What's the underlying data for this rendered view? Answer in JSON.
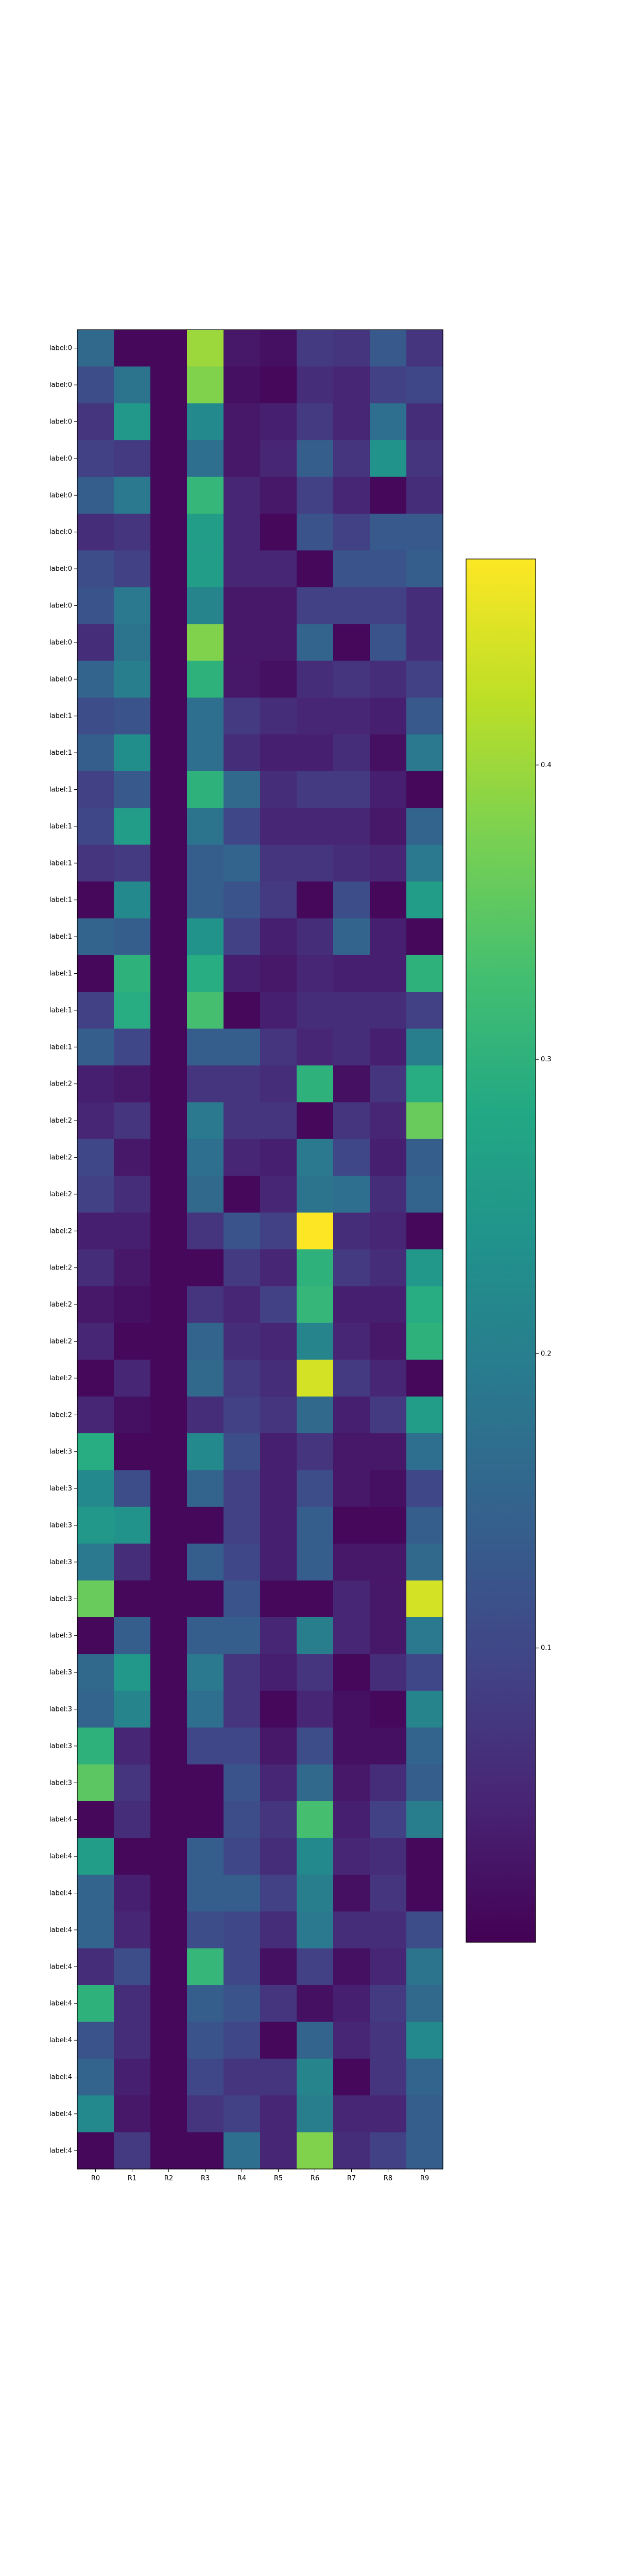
{
  "chart_data": {
    "type": "heatmap",
    "title": "",
    "xlabel": "",
    "ylabel": "",
    "x_labels": [
      "R0",
      "R1",
      "R2",
      "R3",
      "R4",
      "R5",
      "R6",
      "R7",
      "R8",
      "R9"
    ],
    "y_labels": [
      "label:0",
      "label:0",
      "label:0",
      "label:0",
      "label:0",
      "label:0",
      "label:0",
      "label:0",
      "label:0",
      "label:0",
      "label:1",
      "label:1",
      "label:1",
      "label:1",
      "label:1",
      "label:1",
      "label:1",
      "label:1",
      "label:1",
      "label:1",
      "label:2",
      "label:2",
      "label:2",
      "label:2",
      "label:2",
      "label:2",
      "label:2",
      "label:2",
      "label:2",
      "label:2",
      "label:3",
      "label:3",
      "label:3",
      "label:3",
      "label:3",
      "label:3",
      "label:3",
      "label:3",
      "label:3",
      "label:3",
      "label:4",
      "label:4",
      "label:4",
      "label:4",
      "label:4",
      "label:4",
      "label:4",
      "label:4",
      "label:4",
      "label:4"
    ],
    "values": [
      [
        0.16,
        0.01,
        0.01,
        0.4,
        0.03,
        0.02,
        0.08,
        0.07,
        0.13,
        0.07
      ],
      [
        0.11,
        0.18,
        0.01,
        0.38,
        0.02,
        0.01,
        0.06,
        0.05,
        0.09,
        0.1
      ],
      [
        0.07,
        0.25,
        0.01,
        0.22,
        0.03,
        0.04,
        0.08,
        0.05,
        0.17,
        0.06
      ],
      [
        0.09,
        0.08,
        0.01,
        0.17,
        0.03,
        0.05,
        0.14,
        0.07,
        0.24,
        0.07
      ],
      [
        0.14,
        0.19,
        0.01,
        0.31,
        0.05,
        0.03,
        0.09,
        0.05,
        0.01,
        0.06
      ],
      [
        0.06,
        0.07,
        0.01,
        0.26,
        0.05,
        0.01,
        0.12,
        0.09,
        0.13,
        0.13
      ],
      [
        0.11,
        0.09,
        0.01,
        0.26,
        0.05,
        0.05,
        0.01,
        0.12,
        0.12,
        0.14
      ],
      [
        0.12,
        0.19,
        0.01,
        0.21,
        0.03,
        0.03,
        0.09,
        0.09,
        0.09,
        0.06
      ],
      [
        0.06,
        0.18,
        0.01,
        0.38,
        0.03,
        0.03,
        0.15,
        0.01,
        0.12,
        0.06
      ],
      [
        0.15,
        0.2,
        0.01,
        0.3,
        0.03,
        0.02,
        0.06,
        0.07,
        0.06,
        0.09
      ],
      [
        0.11,
        0.12,
        0.01,
        0.17,
        0.08,
        0.06,
        0.05,
        0.05,
        0.04,
        0.13
      ],
      [
        0.14,
        0.23,
        0.01,
        0.17,
        0.06,
        0.04,
        0.04,
        0.06,
        0.02,
        0.19
      ],
      [
        0.09,
        0.13,
        0.01,
        0.3,
        0.16,
        0.06,
        0.08,
        0.08,
        0.04,
        0.01
      ],
      [
        0.1,
        0.26,
        0.01,
        0.18,
        0.1,
        0.05,
        0.05,
        0.05,
        0.03,
        0.15
      ],
      [
        0.07,
        0.08,
        0.01,
        0.14,
        0.15,
        0.07,
        0.07,
        0.06,
        0.05,
        0.19
      ],
      [
        0.01,
        0.22,
        0.01,
        0.14,
        0.12,
        0.08,
        0.01,
        0.11,
        0.01,
        0.26
      ],
      [
        0.15,
        0.14,
        0.01,
        0.24,
        0.09,
        0.04,
        0.06,
        0.15,
        0.04,
        0.01
      ],
      [
        0.01,
        0.3,
        0.01,
        0.29,
        0.04,
        0.03,
        0.05,
        0.04,
        0.04,
        0.3
      ],
      [
        0.09,
        0.29,
        0.01,
        0.33,
        0.01,
        0.04,
        0.06,
        0.06,
        0.06,
        0.09
      ],
      [
        0.14,
        0.1,
        0.01,
        0.14,
        0.14,
        0.07,
        0.05,
        0.06,
        0.04,
        0.2
      ],
      [
        0.04,
        0.03,
        0.01,
        0.07,
        0.07,
        0.06,
        0.3,
        0.02,
        0.07,
        0.29
      ],
      [
        0.05,
        0.07,
        0.01,
        0.19,
        0.07,
        0.07,
        0.01,
        0.07,
        0.05,
        0.36
      ],
      [
        0.1,
        0.03,
        0.01,
        0.17,
        0.05,
        0.04,
        0.19,
        0.1,
        0.04,
        0.14
      ],
      [
        0.09,
        0.06,
        0.01,
        0.16,
        0.01,
        0.05,
        0.18,
        0.17,
        0.06,
        0.15
      ],
      [
        0.04,
        0.04,
        0.01,
        0.07,
        0.12,
        0.09,
        0.47,
        0.06,
        0.05,
        0.01
      ],
      [
        0.06,
        0.03,
        0.01,
        0.01,
        0.08,
        0.05,
        0.3,
        0.08,
        0.06,
        0.25
      ],
      [
        0.03,
        0.02,
        0.01,
        0.07,
        0.05,
        0.09,
        0.31,
        0.04,
        0.04,
        0.29
      ],
      [
        0.05,
        0.01,
        0.01,
        0.15,
        0.06,
        0.05,
        0.21,
        0.05,
        0.03,
        0.3
      ],
      [
        0.01,
        0.05,
        0.01,
        0.16,
        0.08,
        0.06,
        0.44,
        0.08,
        0.05,
        0.01
      ],
      [
        0.05,
        0.02,
        0.01,
        0.06,
        0.09,
        0.07,
        0.16,
        0.04,
        0.08,
        0.26
      ],
      [
        0.29,
        0.01,
        0.01,
        0.22,
        0.11,
        0.04,
        0.07,
        0.03,
        0.03,
        0.17
      ],
      [
        0.22,
        0.11,
        0.01,
        0.15,
        0.09,
        0.04,
        0.11,
        0.03,
        0.02,
        0.1
      ],
      [
        0.25,
        0.24,
        0.01,
        0.01,
        0.09,
        0.04,
        0.14,
        0.01,
        0.01,
        0.14
      ],
      [
        0.19,
        0.06,
        0.01,
        0.14,
        0.1,
        0.04,
        0.14,
        0.03,
        0.03,
        0.16
      ],
      [
        0.36,
        0.01,
        0.01,
        0.01,
        0.12,
        0.01,
        0.01,
        0.05,
        0.03,
        0.44
      ],
      [
        0.01,
        0.14,
        0.01,
        0.14,
        0.14,
        0.05,
        0.2,
        0.05,
        0.03,
        0.19
      ],
      [
        0.16,
        0.25,
        0.01,
        0.19,
        0.07,
        0.04,
        0.07,
        0.01,
        0.06,
        0.1
      ],
      [
        0.15,
        0.21,
        0.01,
        0.17,
        0.07,
        0.01,
        0.05,
        0.02,
        0.01,
        0.21
      ],
      [
        0.3,
        0.05,
        0.01,
        0.1,
        0.1,
        0.03,
        0.11,
        0.02,
        0.02,
        0.15
      ],
      [
        0.35,
        0.07,
        0.01,
        0.01,
        0.12,
        0.05,
        0.16,
        0.03,
        0.06,
        0.14
      ],
      [
        0.01,
        0.06,
        0.01,
        0.01,
        0.11,
        0.07,
        0.33,
        0.04,
        0.09,
        0.2
      ],
      [
        0.26,
        0.01,
        0.01,
        0.14,
        0.1,
        0.06,
        0.22,
        0.05,
        0.06,
        0.01
      ],
      [
        0.15,
        0.04,
        0.01,
        0.14,
        0.14,
        0.09,
        0.2,
        0.02,
        0.07,
        0.01
      ],
      [
        0.15,
        0.05,
        0.01,
        0.11,
        0.1,
        0.06,
        0.19,
        0.06,
        0.06,
        0.11
      ],
      [
        0.06,
        0.11,
        0.01,
        0.31,
        0.1,
        0.02,
        0.09,
        0.02,
        0.05,
        0.18
      ],
      [
        0.3,
        0.06,
        0.01,
        0.14,
        0.12,
        0.07,
        0.02,
        0.04,
        0.08,
        0.16
      ],
      [
        0.12,
        0.06,
        0.01,
        0.12,
        0.1,
        0.01,
        0.15,
        0.05,
        0.07,
        0.22
      ],
      [
        0.15,
        0.04,
        0.01,
        0.1,
        0.07,
        0.07,
        0.21,
        0.01,
        0.07,
        0.15
      ],
      [
        0.22,
        0.03,
        0.01,
        0.07,
        0.09,
        0.05,
        0.2,
        0.05,
        0.05,
        0.14
      ],
      [
        0.01,
        0.08,
        0.01,
        0.01,
        0.17,
        0.05,
        0.38,
        0.06,
        0.09,
        0.14
      ]
    ],
    "colormap": "viridis",
    "vmin": 0.0,
    "vmax": 0.47,
    "colorbar_ticks": [
      0.1,
      0.2,
      0.3,
      0.4
    ],
    "grid": false,
    "legend": "colorbar-right"
  }
}
